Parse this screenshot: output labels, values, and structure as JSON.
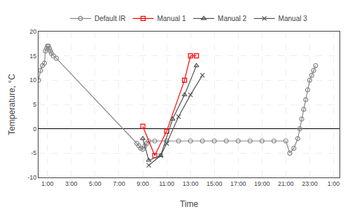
{
  "chart_data": {
    "type": "line",
    "xlabel": "Time",
    "ylabel": "Temperature, °C",
    "background_color": "#ffffff",
    "xlim": [
      0.25,
      25.5
    ],
    "xticks": [
      {
        "value": 1,
        "label": "1:00"
      },
      {
        "value": 3,
        "label": "3:00"
      },
      {
        "value": 5,
        "label": "5:00"
      },
      {
        "value": 7,
        "label": "7:00"
      },
      {
        "value": 9,
        "label": "9:00"
      },
      {
        "value": 11,
        "label": "11:00"
      },
      {
        "value": 13,
        "label": "13:00"
      },
      {
        "value": 15,
        "label": "15:00"
      },
      {
        "value": 17,
        "label": "17:00"
      },
      {
        "value": 19,
        "label": "19:00"
      },
      {
        "value": 21,
        "label": "21:00"
      },
      {
        "value": 23,
        "label": "23:00"
      },
      {
        "value": 25,
        "label": "1:00"
      }
    ],
    "ylim": [
      -10,
      20
    ],
    "yticks": [
      -10,
      -5,
      0,
      5,
      10,
      15,
      20
    ],
    "grid": true,
    "legend": "top",
    "series": [
      {
        "name": "Default IR",
        "color": "#888888",
        "marker": "circle",
        "x": [
          0.25,
          0.42,
          0.58,
          0.75,
          0.83,
          0.92,
          1.0,
          1.08,
          1.17,
          1.25,
          1.33,
          1.5,
          1.75,
          8.5,
          8.67,
          8.83,
          9.0,
          9.17,
          9.33,
          9.5,
          10.0,
          11.0,
          12.0,
          13.0,
          14.0,
          15.0,
          16.0,
          17.0,
          18.0,
          19.0,
          20.0,
          21.0,
          21.33,
          21.67,
          22.0,
          22.17,
          22.33,
          22.5,
          22.67,
          22.83,
          23.0,
          23.17,
          23.33,
          23.5
        ],
        "values": [
          10,
          12,
          13,
          13.5,
          16,
          16.5,
          17,
          17,
          16.5,
          16,
          15.5,
          15,
          14.5,
          -3,
          -3.5,
          -4,
          -4.2,
          -3.5,
          -3,
          -2.5,
          -2.5,
          -2.5,
          -2.5,
          -2.5,
          -2.5,
          -2.5,
          -2.5,
          -2.5,
          -2.5,
          -2.5,
          -2.5,
          -2.5,
          -5,
          -4,
          -2,
          0,
          2,
          4,
          6,
          8,
          10,
          11,
          12,
          13
        ]
      },
      {
        "name": "Manual 1",
        "color": "#ff0000",
        "marker": "square",
        "x": [
          9.0,
          10.0,
          11.0,
          12.5,
          13.0,
          13.5
        ],
        "values": [
          0.5,
          -5.5,
          -0.5,
          10,
          15,
          15
        ]
      },
      {
        "name": "Manual 2",
        "color": "#555555",
        "marker": "triangle-up",
        "x": [
          9.0,
          9.5,
          10.5,
          11.5,
          12.5,
          13.5
        ],
        "values": [
          -2,
          -6.5,
          -5.5,
          2,
          7,
          13
        ]
      },
      {
        "name": "Manual 3",
        "color": "#555555",
        "marker": "x",
        "x": [
          9.5,
          10.5,
          11.0,
          12.0,
          13.0,
          14.0
        ],
        "values": [
          -7.5,
          -5.5,
          -3,
          2.5,
          7,
          11
        ]
      }
    ]
  }
}
